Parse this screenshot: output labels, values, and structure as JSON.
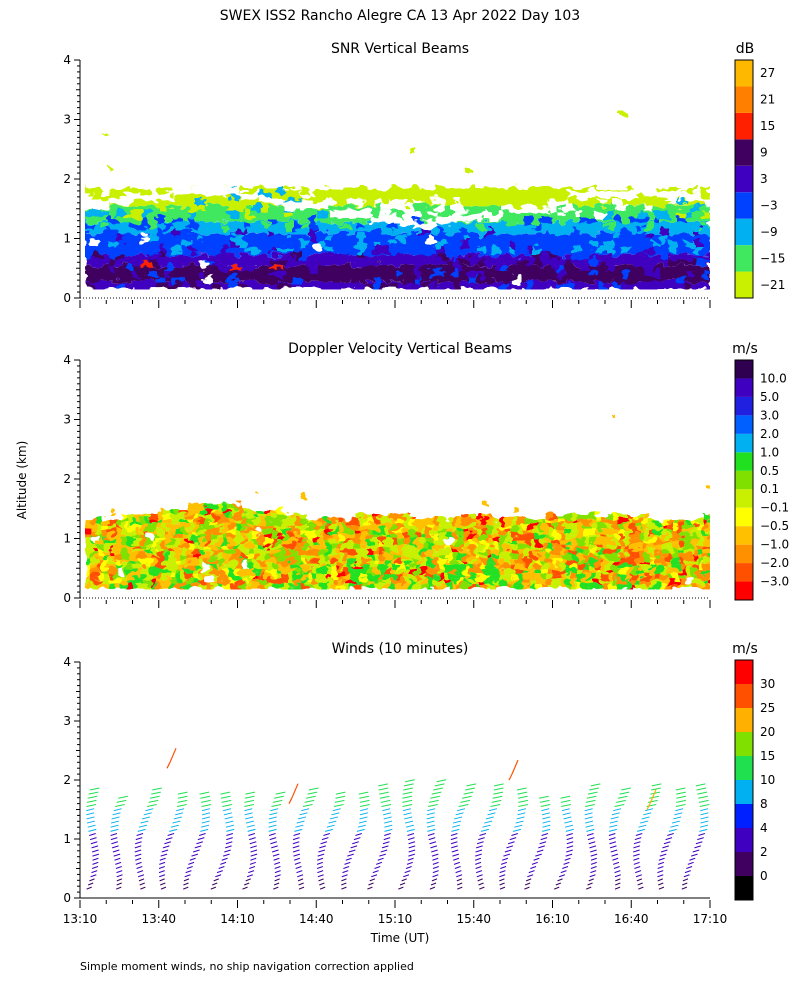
{
  "title": "SWEX ISS2 Rancho Alegre CA  13 Apr 2022 Day 103",
  "footnote": "Simple moment winds, no ship navigation correction applied",
  "shared_axis": {
    "ylabel": "Altitude (km)",
    "xlabel": "Time (UT)",
    "x_ticks": [
      "13:10",
      "13:40",
      "14:10",
      "14:40",
      "15:10",
      "15:40",
      "16:10",
      "16:40",
      "17:10"
    ],
    "y_ticks": [
      "0",
      "1",
      "2",
      "3",
      "4"
    ]
  },
  "colors": {
    "snr": [
      "#c8f000",
      "#40e860",
      "#00b0f0",
      "#0040ff",
      "#4000c0",
      "#400060",
      "#ff2000",
      "#ff8000",
      "#ffb800"
    ],
    "doppler": [
      "#ff0000",
      "#ff5000",
      "#ff9000",
      "#ffc000",
      "#ffff00",
      "#c8f000",
      "#80e000",
      "#20e020",
      "#00b0f0",
      "#0060ff",
      "#2020e0",
      "#4000c0",
      "#300050"
    ],
    "winds": [
      "#000000",
      "#400060",
      "#4000c0",
      "#0020ff",
      "#00b0f0",
      "#20e050",
      "#80e000",
      "#ffb000",
      "#ff5000",
      "#ff0000"
    ]
  },
  "chart_data": [
    {
      "type": "heatmap",
      "title": "SNR Vertical Beams",
      "units": "dB",
      "xlabel": "",
      "ylabel": "Altitude (km)",
      "xlim": [
        "13:10",
        "17:10"
      ],
      "ylim": [
        0,
        4
      ],
      "colorbar_ticks": [
        "27",
        "21",
        "15",
        "9",
        "3",
        "−3",
        "−9",
        "−15",
        "−21"
      ],
      "levels": [
        -21,
        -15,
        -9,
        -3,
        3,
        9,
        15,
        21,
        27
      ],
      "layers": [
        {
          "alt_from": 0.15,
          "alt_to": 0.55,
          "value": 9
        },
        {
          "alt_from": 0.55,
          "alt_to": 0.7,
          "value": 6
        },
        {
          "alt_from": 0.7,
          "alt_to": 1.05,
          "value": -3
        },
        {
          "alt_from": 1.05,
          "alt_to": 1.3,
          "value": -9
        },
        {
          "alt_from": 1.3,
          "alt_to": 1.55,
          "value": -15
        },
        {
          "alt_from": 1.55,
          "alt_to": 1.9,
          "value": -21
        }
      ]
    },
    {
      "type": "heatmap",
      "title": "Doppler Velocity Vertical Beams",
      "units": "m/s",
      "xlabel": "",
      "ylabel": "Altitude (km)",
      "xlim": [
        "13:10",
        "17:10"
      ],
      "ylim": [
        0,
        4
      ],
      "colorbar_ticks": [
        "10.0",
        "5.0",
        "3.0",
        "2.0",
        "1.0",
        "0.5",
        "0.1",
        "−0.1",
        "−0.5",
        "−1.0",
        "−2.0",
        "−3.0"
      ],
      "dominant_range": [
        -1.0,
        0.5
      ],
      "top_altitude_km": [
        1.25,
        1.6,
        1.4,
        1.35,
        1.4
      ]
    },
    {
      "type": "wind_barbs",
      "title": "Winds (10 minutes)",
      "units": "m/s",
      "xlabel": "Time (UT)",
      "ylabel": "Altitude (km)",
      "xlim": [
        "13:10",
        "17:10"
      ],
      "ylim": [
        0,
        4
      ],
      "colorbar_ticks": [
        "30",
        "25",
        "20",
        "15",
        "10",
        "8",
        "4",
        "2",
        "0"
      ],
      "profile_times": [
        "13:15",
        "13:25",
        "13:35",
        "13:45",
        "13:55",
        "14:05",
        "14:15",
        "14:25",
        "14:35",
        "14:45",
        "14:55",
        "15:05",
        "15:15",
        "15:25",
        "15:35",
        "15:45",
        "15:55",
        "16:05",
        "16:15",
        "16:25",
        "16:35",
        "16:45",
        "16:55",
        "17:05"
      ],
      "speed_profile": [
        {
          "alt_km": 0.2,
          "speed": 3
        },
        {
          "alt_km": 0.6,
          "speed": 5
        },
        {
          "alt_km": 1.0,
          "speed": 8
        },
        {
          "alt_km": 1.4,
          "speed": 12
        },
        {
          "alt_km": 1.8,
          "speed": 16
        },
        {
          "alt_km": 2.2,
          "speed": 30
        }
      ]
    }
  ]
}
